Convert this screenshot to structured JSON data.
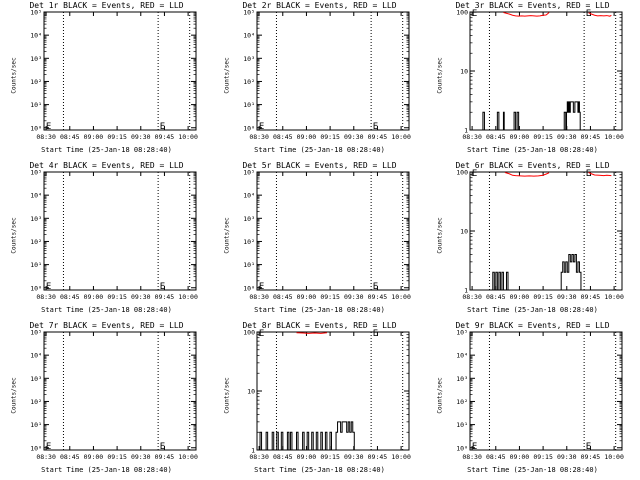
{
  "chart_data": [
    {
      "type": "line",
      "title": "Det 1r BLACK = Events, RED = LLD",
      "xlabel": "Start Time (25-Jan-18 08:28:40)",
      "ylabel": "Counts/sec",
      "y_scale": "log",
      "ylim": [
        0.8,
        100000
      ],
      "y_ticks": [
        "10⁰",
        "10¹",
        "10²",
        "10³",
        "10⁴",
        "10⁵"
      ],
      "x_ticks": [
        "08:30",
        "08:45",
        "09:00",
        "09:15",
        "09:30",
        "09:45",
        "10:00"
      ],
      "x_tick_minutes": [
        510,
        525,
        540,
        555,
        570,
        585,
        600
      ],
      "xlim": [
        "08:28:40",
        "10:05"
      ],
      "vlines": [
        "08:41",
        "09:41",
        "10:01"
      ],
      "markers": [
        "E",
        "E"
      ],
      "events": [],
      "lld": []
    },
    {
      "type": "line",
      "title": "Det 2r BLACK = Events, RED = LLD",
      "xlabel": "Start Time (25-Jan-18 08:28:40)",
      "ylabel": "Counts/sec",
      "y_scale": "log",
      "ylim": [
        0.8,
        100000
      ],
      "y_ticks": [
        "10⁰",
        "10¹",
        "10²",
        "10³",
        "10⁴",
        "10⁵"
      ],
      "x_ticks": [
        "08:30",
        "08:45",
        "09:00",
        "09:15",
        "09:30",
        "09:45",
        "10:00"
      ],
      "x_tick_minutes": [
        510,
        525,
        540,
        555,
        570,
        585,
        600
      ],
      "xlim": [
        "08:28:40",
        "10:05"
      ],
      "vlines": [
        "08:41",
        "09:41",
        "10:01"
      ],
      "markers": [
        "E",
        "E"
      ],
      "events": [],
      "lld": []
    },
    {
      "type": "line",
      "title": "Det 3r BLACK = Events, RED = LLD",
      "xlabel": "Start Time (25-Jan-18 08:28:40)",
      "ylabel": "Counts/sec",
      "y_scale": "log",
      "ylim": [
        1,
        100
      ],
      "y_ticks": [
        "1",
        "10",
        "100"
      ],
      "x_ticks": [
        "08:30",
        "08:45",
        "09:00",
        "09:15",
        "09:30",
        "09:45",
        "10:00"
      ],
      "x_tick_minutes": [
        510,
        525,
        540,
        555,
        570,
        585,
        600
      ],
      "xlim": [
        "08:28:40",
        "10:05"
      ],
      "vlines": [
        "08:41",
        "09:41",
        "10:01"
      ],
      "markers": [
        "E",
        "E"
      ],
      "events": [
        [
          8.5,
          2
        ],
        [
          9.5,
          1
        ],
        [
          18,
          2
        ],
        [
          19,
          1
        ],
        [
          22,
          2
        ],
        [
          22.5,
          1
        ],
        [
          29,
          2
        ],
        [
          30,
          1
        ],
        [
          31,
          2
        ],
        [
          32,
          1
        ],
        [
          62,
          2
        ],
        [
          63,
          1
        ],
        [
          63.5,
          2
        ],
        [
          64,
          3
        ],
        [
          64.5,
          2
        ],
        [
          65,
          3
        ],
        [
          65.5,
          2
        ],
        [
          66,
          3
        ],
        [
          67,
          3
        ],
        [
          68,
          2
        ],
        [
          69,
          3
        ],
        [
          70,
          3
        ],
        [
          71,
          2
        ],
        [
          71.5,
          3
        ],
        [
          72,
          2
        ],
        [
          72.5,
          1
        ]
      ],
      "lld": [
        [
          12,
          98
        ],
        [
          22,
          98
        ],
        [
          26,
          92
        ],
        [
          28,
          88
        ],
        [
          30,
          86
        ],
        [
          32,
          85
        ],
        [
          34,
          86
        ],
        [
          36,
          85
        ],
        [
          38,
          86
        ],
        [
          40,
          87
        ],
        [
          42,
          86
        ],
        [
          44,
          85
        ],
        [
          46,
          86
        ],
        [
          48,
          88
        ],
        [
          50,
          89
        ],
        [
          51,
          93
        ],
        [
          52,
          98
        ],
        [
          78,
          97
        ],
        [
          80,
          92
        ],
        [
          82,
          88
        ],
        [
          84,
          86
        ],
        [
          86,
          87
        ],
        [
          88,
          86
        ],
        [
          90,
          87
        ],
        [
          92,
          85
        ],
        [
          93,
          88
        ]
      ]
    },
    {
      "type": "line",
      "title": "Det 4r BLACK = Events, RED = LLD",
      "xlabel": "Start Time (25-Jan-18 08:28:40)",
      "ylabel": "Counts/sec",
      "y_scale": "log",
      "ylim": [
        0.8,
        100000
      ],
      "y_ticks": [
        "10⁰",
        "10¹",
        "10²",
        "10³",
        "10⁴",
        "10⁵"
      ],
      "x_ticks": [
        "08:30",
        "08:45",
        "09:00",
        "09:15",
        "09:30",
        "09:45",
        "10:00"
      ],
      "x_tick_minutes": [
        510,
        525,
        540,
        555,
        570,
        585,
        600
      ],
      "xlim": [
        "08:28:40",
        "10:05"
      ],
      "vlines": [
        "08:41",
        "09:41",
        "10:01"
      ],
      "markers": [
        "E",
        "E"
      ],
      "events": [],
      "lld": []
    },
    {
      "type": "line",
      "title": "Det 5r BLACK = Events, RED = LLD",
      "xlabel": "Start Time (25-Jan-18 08:28:40)",
      "ylabel": "Counts/sec",
      "y_scale": "log",
      "ylim": [
        0.8,
        100000
      ],
      "y_ticks": [
        "10⁰",
        "10¹",
        "10²",
        "10³",
        "10⁴",
        "10⁵"
      ],
      "x_ticks": [
        "08:30",
        "08:45",
        "09:00",
        "09:15",
        "09:30",
        "09:45",
        "10:00"
      ],
      "x_tick_minutes": [
        510,
        525,
        540,
        555,
        570,
        585,
        600
      ],
      "xlim": [
        "08:28:40",
        "10:05"
      ],
      "vlines": [
        "08:41",
        "09:41",
        "10:01"
      ],
      "markers": [
        "E",
        "E"
      ],
      "events": [],
      "lld": []
    },
    {
      "type": "line",
      "title": "Det 6r BLACK = Events, RED = LLD",
      "xlabel": "Start Time (25-Jan-18 08:28:40)",
      "ylabel": "Counts/sec",
      "y_scale": "log",
      "ylim": [
        1,
        100
      ],
      "y_ticks": [
        "1",
        "10",
        "100"
      ],
      "x_ticks": [
        "08:30",
        "08:45",
        "09:00",
        "09:15",
        "09:30",
        "09:45",
        "10:00"
      ],
      "x_tick_minutes": [
        510,
        525,
        540,
        555,
        570,
        585,
        600
      ],
      "xlim": [
        "08:28:40",
        "10:05"
      ],
      "vlines": [
        "08:41",
        "09:41",
        "10:01"
      ],
      "markers": [
        "E",
        "E"
      ],
      "events": [
        [
          14,
          1
        ],
        [
          15,
          2
        ],
        [
          16,
          1
        ],
        [
          17,
          2
        ],
        [
          18,
          1
        ],
        [
          19,
          2
        ],
        [
          20,
          1
        ],
        [
          21,
          2
        ],
        [
          22,
          1
        ],
        [
          24,
          2
        ],
        [
          25,
          1
        ],
        [
          60,
          2
        ],
        [
          61,
          3
        ],
        [
          62,
          2
        ],
        [
          63,
          3
        ],
        [
          64,
          2
        ],
        [
          65,
          4
        ],
        [
          66,
          3
        ],
        [
          67,
          4
        ],
        [
          68,
          3
        ],
        [
          69,
          4
        ],
        [
          70,
          2
        ],
        [
          71,
          3
        ],
        [
          72,
          2
        ],
        [
          73,
          1
        ]
      ],
      "lld": [
        [
          23,
          98
        ],
        [
          26,
          93
        ],
        [
          28,
          88
        ],
        [
          30,
          87
        ],
        [
          33,
          86
        ],
        [
          36,
          85
        ],
        [
          39,
          86
        ],
        [
          42,
          85
        ],
        [
          45,
          86
        ],
        [
          48,
          88
        ],
        [
          50,
          92
        ],
        [
          52,
          97
        ],
        [
          78,
          98
        ],
        [
          80,
          93
        ],
        [
          82,
          89
        ],
        [
          85,
          88
        ],
        [
          88,
          87
        ],
        [
          90,
          88
        ],
        [
          93,
          87
        ]
      ]
    },
    {
      "type": "line",
      "title": "Det 7r BLACK = Events, RED = LLD",
      "xlabel": "Start Time (25-Jan-18 08:28:40)",
      "ylabel": "Counts/sec",
      "y_scale": "log",
      "ylim": [
        0.8,
        100000
      ],
      "y_ticks": [
        "10⁰",
        "10¹",
        "10²",
        "10³",
        "10⁴",
        "10⁵"
      ],
      "x_ticks": [
        "08:30",
        "08:45",
        "09:00",
        "09:15",
        "09:30",
        "09:45",
        "10:00"
      ],
      "x_tick_minutes": [
        510,
        525,
        540,
        555,
        570,
        585,
        600
      ],
      "xlim": [
        "08:28:40",
        "10:05"
      ],
      "vlines": [
        "08:41",
        "09:41",
        "10:01"
      ],
      "markers": [
        "E",
        "E"
      ],
      "events": [],
      "lld": []
    },
    {
      "type": "line",
      "title": "Det 8r BLACK = Events, RED = LLD",
      "xlabel": "Start Time (25-Jan-18 08:28:40)",
      "ylabel": "Counts/sec",
      "y_scale": "log",
      "ylim": [
        1,
        100
      ],
      "y_ticks": [
        "1",
        "10",
        "100"
      ],
      "x_ticks": [
        "08:30",
        "08:45",
        "09:00",
        "09:15",
        "09:30",
        "09:45",
        "10:00"
      ],
      "x_tick_minutes": [
        510,
        525,
        540,
        555,
        570,
        585,
        600
      ],
      "xlim": [
        "08:28:40",
        "10:05"
      ],
      "vlines": [
        "08:41",
        "09:41",
        "10:01"
      ],
      "markers": [
        "E",
        "E"
      ],
      "events": [
        [
          2,
          2
        ],
        [
          3,
          1
        ],
        [
          6,
          2
        ],
        [
          7,
          1
        ],
        [
          10,
          2
        ],
        [
          11,
          1
        ],
        [
          13,
          2
        ],
        [
          14,
          1
        ],
        [
          16,
          2
        ],
        [
          17,
          1
        ],
        [
          20,
          2
        ],
        [
          21,
          1
        ],
        [
          22,
          2
        ],
        [
          23,
          1
        ],
        [
          26,
          2
        ],
        [
          27,
          1
        ],
        [
          30,
          2
        ],
        [
          31,
          1
        ],
        [
          33,
          2
        ],
        [
          34,
          1
        ],
        [
          36,
          2
        ],
        [
          37,
          1
        ],
        [
          39,
          2
        ],
        [
          40,
          1
        ],
        [
          42,
          2
        ],
        [
          43,
          1
        ],
        [
          45,
          2
        ],
        [
          46,
          1
        ],
        [
          48,
          2
        ],
        [
          49,
          1
        ],
        [
          52,
          2
        ],
        [
          53,
          3
        ],
        [
          55,
          2
        ],
        [
          56,
          3
        ],
        [
          58,
          3
        ],
        [
          59,
          2
        ],
        [
          60,
          3
        ],
        [
          61,
          2
        ],
        [
          62,
          3
        ],
        [
          63,
          2
        ],
        [
          64,
          1
        ]
      ],
      "lld": [
        [
          26,
          97
        ],
        [
          30,
          96
        ],
        [
          34,
          95
        ],
        [
          38,
          96
        ],
        [
          42,
          95
        ],
        [
          46,
          97
        ]
      ]
    },
    {
      "type": "line",
      "title": "Det 9r BLACK = Events, RED = LLD",
      "xlabel": "Start Time (25-Jan-18 08:28:40)",
      "ylabel": "Counts/sec",
      "y_scale": "log",
      "ylim": [
        0.8,
        100000
      ],
      "y_ticks": [
        "10⁰",
        "10¹",
        "10²",
        "10³",
        "10⁴",
        "10⁵"
      ],
      "x_ticks": [
        "08:30",
        "08:45",
        "09:00",
        "09:15",
        "09:30",
        "09:45",
        "10:00"
      ],
      "x_tick_minutes": [
        510,
        525,
        540,
        555,
        570,
        585,
        600
      ],
      "xlim": [
        "08:28:40",
        "10:05"
      ],
      "vlines": [
        "08:41",
        "09:41",
        "10:01"
      ],
      "markers": [
        "E",
        "E"
      ],
      "events": [],
      "lld": []
    }
  ],
  "colors": {
    "events": "#000000",
    "lld": "#ff0000",
    "axis": "#000000",
    "background": "#ffffff"
  }
}
